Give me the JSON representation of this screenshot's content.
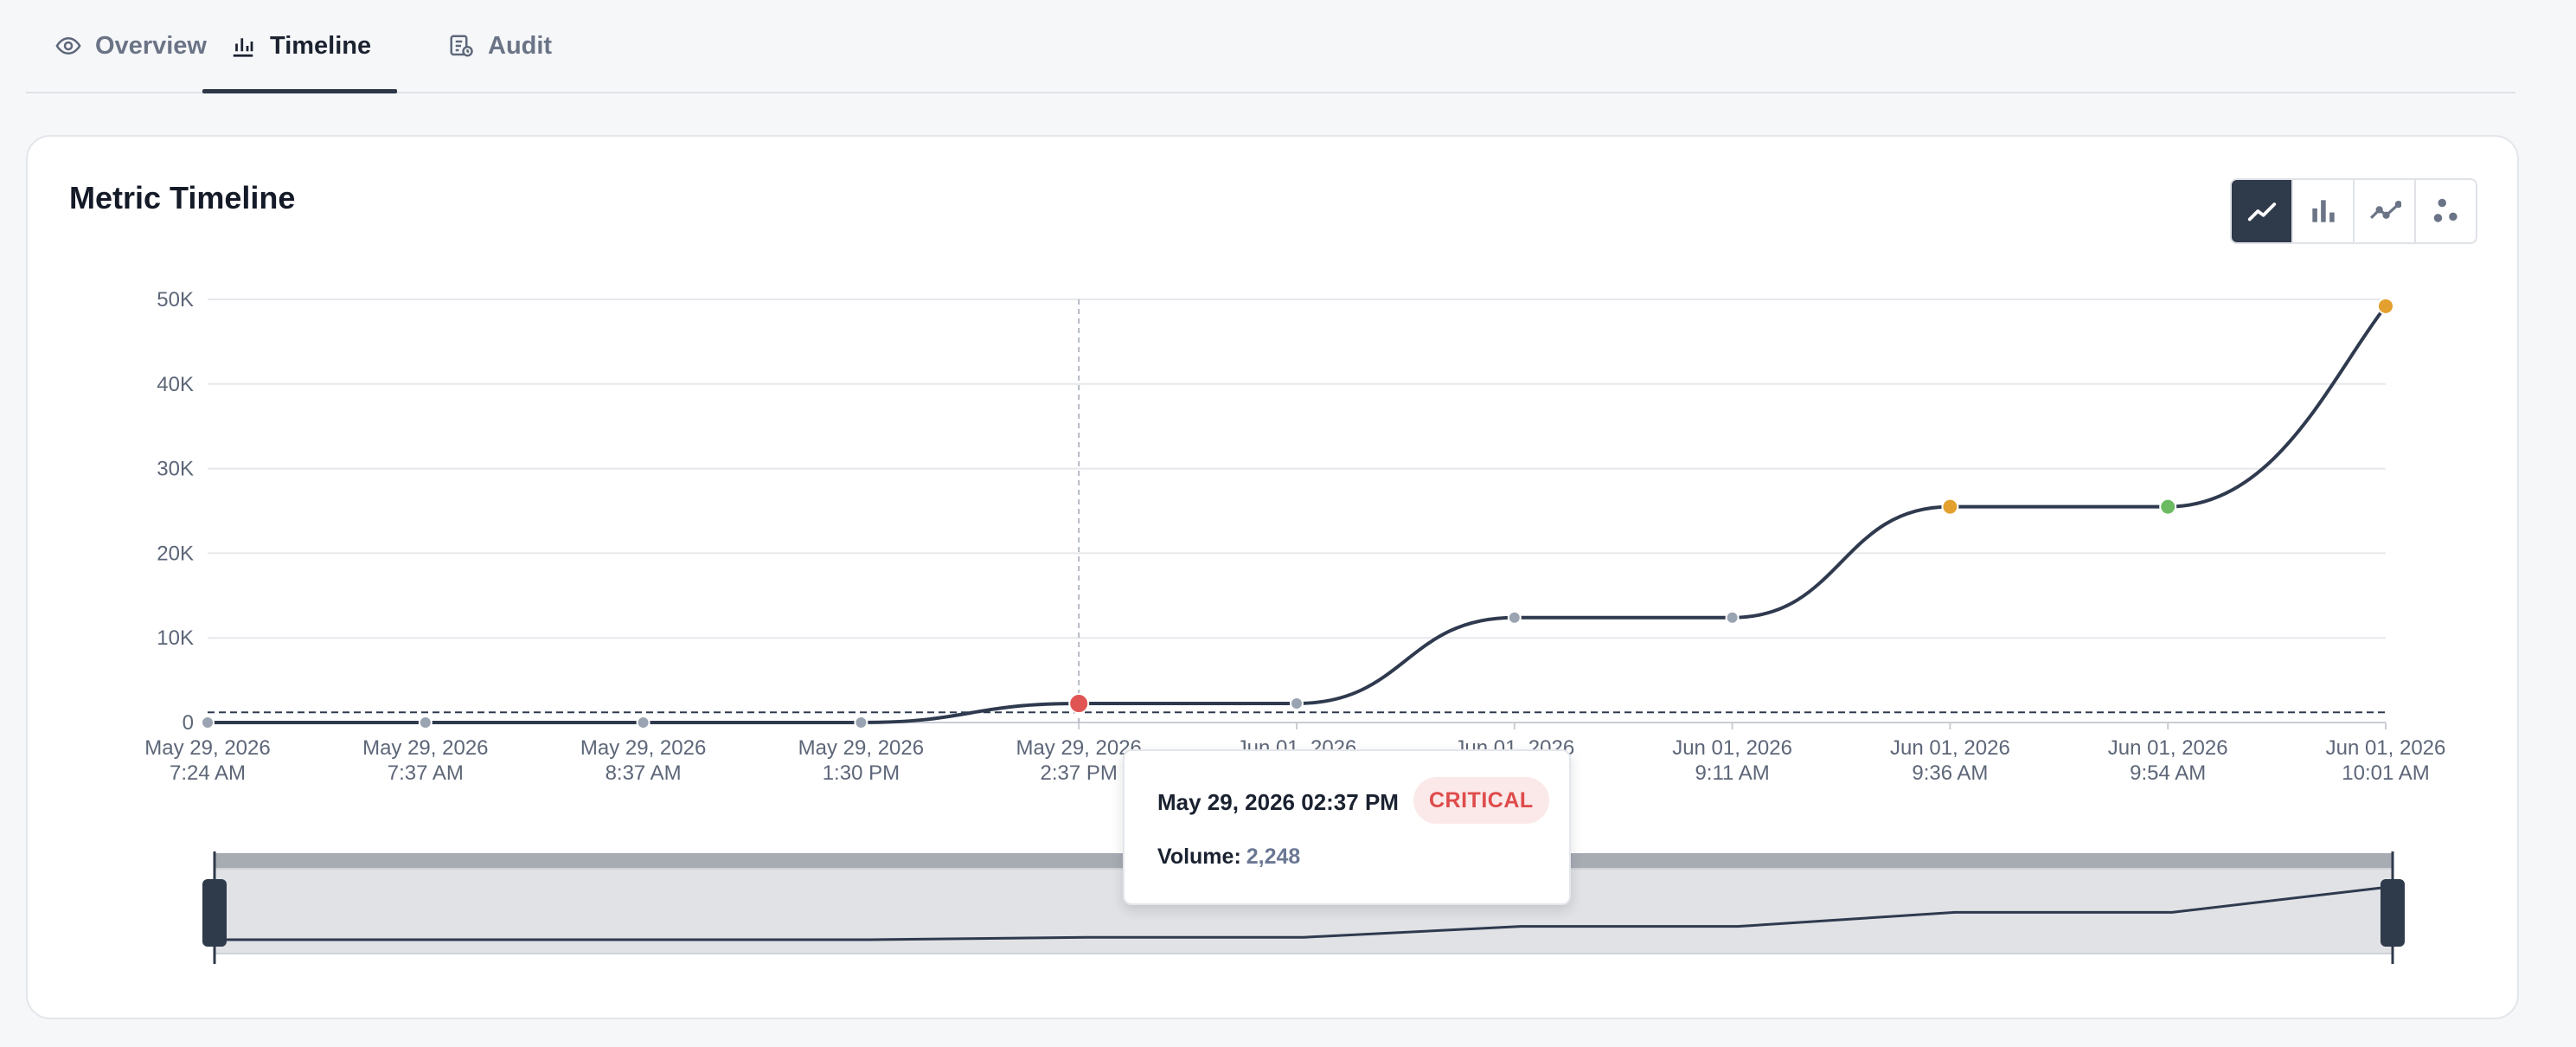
{
  "tabs": [
    {
      "label": "Overview",
      "icon": "eye-icon",
      "active": false
    },
    {
      "label": "Timeline",
      "icon": "bar-chart-icon",
      "active": true
    },
    {
      "label": "Audit",
      "icon": "audit-log-icon",
      "active": false
    }
  ],
  "card": {
    "title": "Metric Timeline",
    "chart_types": [
      {
        "name": "area",
        "icon": "area-chart-icon",
        "active": true
      },
      {
        "name": "bar",
        "icon": "bar-chart-icon",
        "active": false
      },
      {
        "name": "line",
        "icon": "line-chart-icon",
        "active": false
      },
      {
        "name": "scatter",
        "icon": "scatter-chart-icon",
        "active": false
      }
    ]
  },
  "chart_data": {
    "type": "line",
    "title": "",
    "xlabel": "",
    "ylabel": "",
    "ylim": [
      0,
      50000
    ],
    "yticks": [
      0,
      10000,
      20000,
      30000,
      40000,
      50000
    ],
    "ytick_labels": [
      "0",
      "10K",
      "20K",
      "30K",
      "40K",
      "50K"
    ],
    "grid": true,
    "threshold": 1200,
    "series": [
      {
        "values": [
          0,
          0,
          0,
          0,
          2248,
          2248,
          12400,
          12400,
          25500,
          25500,
          49200
        ],
        "point_status": [
          "normal",
          "normal",
          "normal",
          "normal",
          "critical",
          "normal",
          "normal",
          "normal",
          "warning",
          "ok",
          "warning"
        ]
      }
    ],
    "x_labels": [
      [
        "May 29, 2026",
        "7:24 AM"
      ],
      [
        "May 29, 2026",
        "7:37 AM"
      ],
      [
        "May 29, 2026",
        "8:37 AM"
      ],
      [
        "May 29, 2026",
        "1:30 PM"
      ],
      [
        "May 29, 2026",
        "2:37 PM"
      ],
      [
        "Jun 01, 2026",
        ""
      ],
      [
        "Jun 01, 2026",
        ""
      ],
      [
        "Jun 01, 2026",
        "9:11 AM"
      ],
      [
        "Jun 01, 2026",
        "9:36 AM"
      ],
      [
        "Jun 01, 2026",
        "9:54 AM"
      ],
      [
        "Jun 01, 2026",
        "10:01 AM"
      ]
    ],
    "hover_index": 4,
    "colors": {
      "line": "#2f3a4f",
      "normal": "#9aa3b1",
      "critical": "#e05454",
      "warning": "#e3a02e",
      "ok": "#6cbb63",
      "grid": "#e6e8ec",
      "threshold": "#2f3a4f"
    }
  },
  "tooltip": {
    "date": "May 29, 2026 02:37 PM",
    "badge": "CRITICAL",
    "metric_label": "Volume:",
    "metric_value": "2,248"
  }
}
